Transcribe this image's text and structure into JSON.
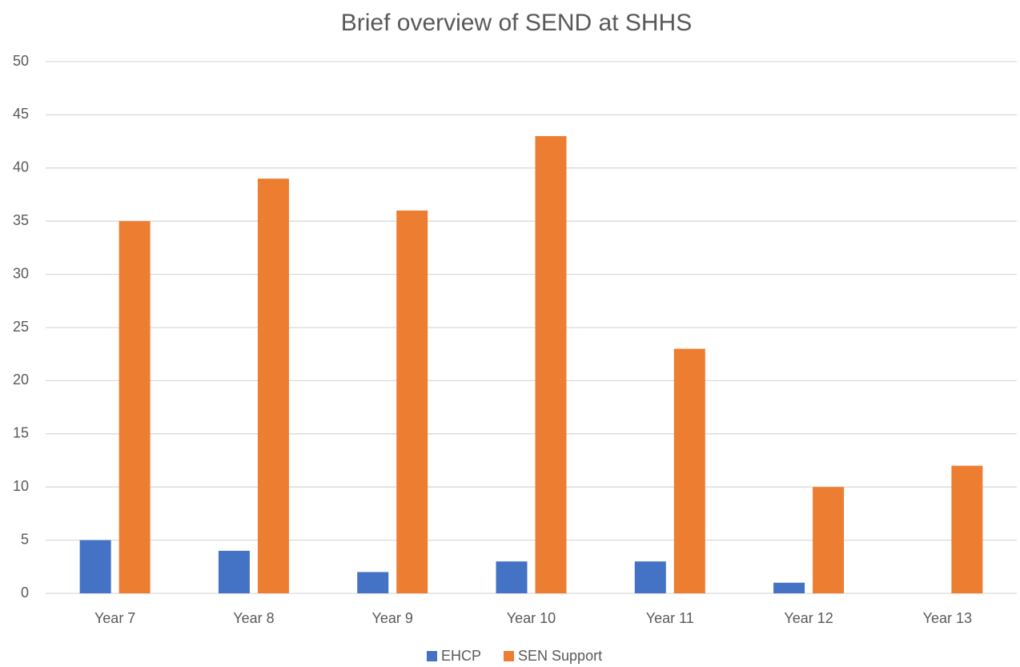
{
  "chart_data": {
    "type": "bar",
    "title": "Brief overview of SEND at SHHS",
    "categories": [
      "Year 7",
      "Year 8",
      "Year 9",
      "Year 10",
      "Year 11",
      "Year 12",
      "Year 13"
    ],
    "series": [
      {
        "name": "EHCP",
        "color": "#4472c4",
        "values": [
          5,
          4,
          2,
          3,
          3,
          1,
          0
        ]
      },
      {
        "name": "SEN Support",
        "color": "#ed7d31",
        "values": [
          35,
          39,
          36,
          43,
          23,
          10,
          12
        ]
      }
    ],
    "ylim": [
      0,
      50
    ],
    "yticks": [
      0,
      5,
      10,
      15,
      20,
      25,
      30,
      35,
      40,
      45,
      50
    ],
    "grid": true,
    "legend": "bottom"
  }
}
